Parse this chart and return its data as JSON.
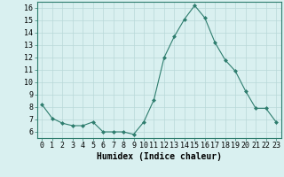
{
  "x": [
    0,
    1,
    2,
    3,
    4,
    5,
    6,
    7,
    8,
    9,
    10,
    11,
    12,
    13,
    14,
    15,
    16,
    17,
    18,
    19,
    20,
    21,
    22,
    23
  ],
  "y": [
    8.2,
    7.1,
    6.7,
    6.5,
    6.5,
    6.8,
    6.0,
    6.0,
    6.0,
    5.8,
    6.8,
    8.6,
    12.0,
    13.7,
    15.1,
    16.2,
    15.2,
    13.2,
    11.8,
    10.9,
    9.3,
    7.9,
    7.9,
    6.8
  ],
  "line_color": "#2e7d6e",
  "marker": "D",
  "marker_size": 2,
  "bg_color": "#d9f0f0",
  "grid_color": "#b8d8d8",
  "xlabel": "Humidex (Indice chaleur)",
  "ylim": [
    5.5,
    16.5
  ],
  "xlim": [
    -0.5,
    23.5
  ],
  "yticks": [
    6,
    7,
    8,
    9,
    10,
    11,
    12,
    13,
    14,
    15,
    16
  ],
  "xticks": [
    0,
    1,
    2,
    3,
    4,
    5,
    6,
    7,
    8,
    9,
    10,
    11,
    12,
    13,
    14,
    15,
    16,
    17,
    18,
    19,
    20,
    21,
    22,
    23
  ],
  "tick_label_fontsize": 6,
  "xlabel_fontsize": 7
}
